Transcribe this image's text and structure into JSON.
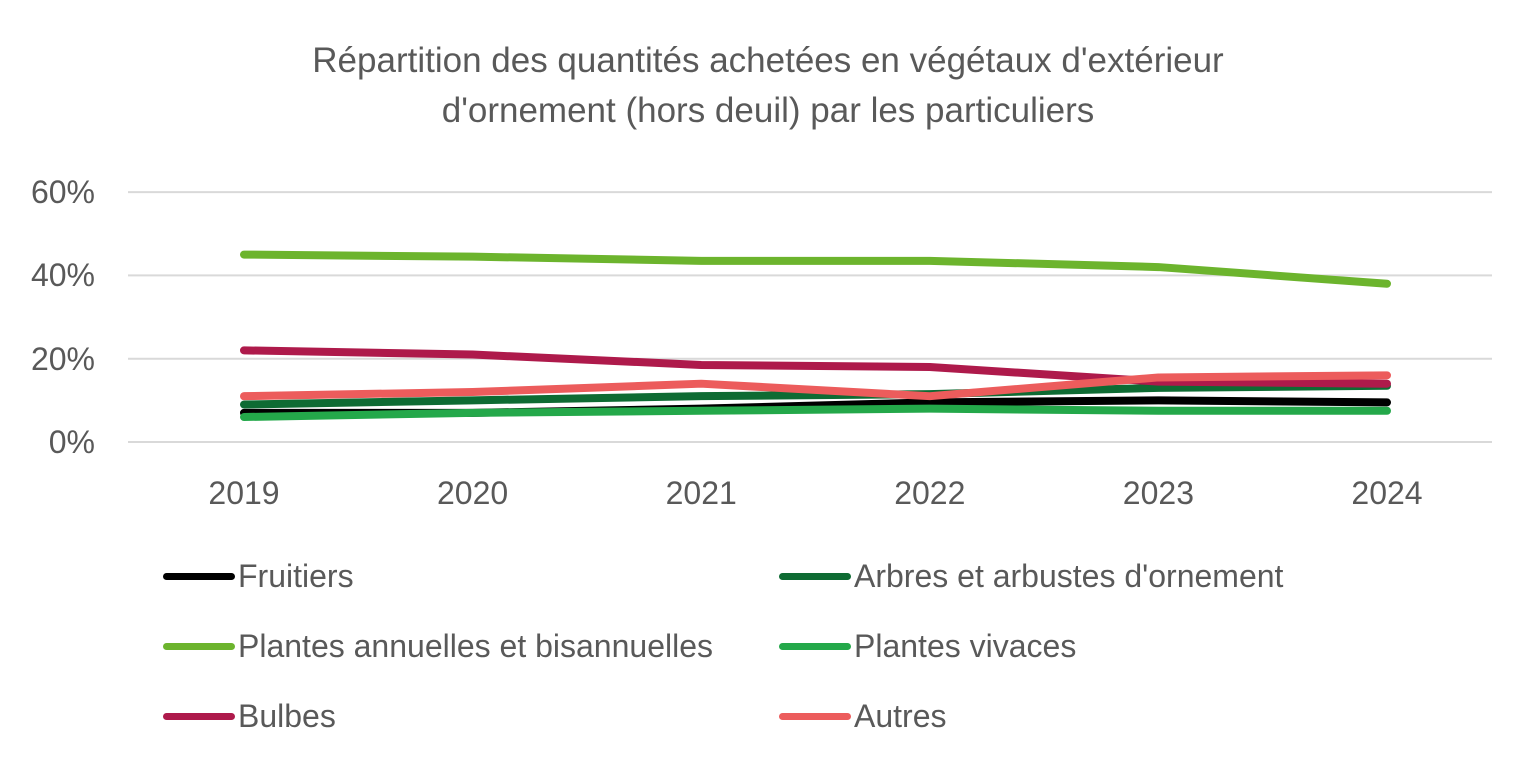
{
  "title": {
    "line1": "Répartition des quantités achetées en végétaux d'extérieur",
    "line2": "d'ornement (hors deuil) par les particuliers"
  },
  "chart_data": {
    "type": "line",
    "title": "Répartition des quantités achetées en végétaux d'extérieur d'ornement (hors deuil) par les particuliers",
    "x": [
      "2019",
      "2020",
      "2021",
      "2022",
      "2023",
      "2024"
    ],
    "xlabel": "",
    "ylabel": "",
    "ylim": [
      0,
      60
    ],
    "grid": true,
    "legend_position": "bottom",
    "y_ticks": [
      {
        "value": 0,
        "label": "0%"
      },
      {
        "value": 20,
        "label": "20%"
      },
      {
        "value": 40,
        "label": "40%"
      },
      {
        "value": 60,
        "label": "60%"
      }
    ],
    "series": [
      {
        "name": "Fruitiers",
        "color": "#000000",
        "values": [
          7,
          7,
          8,
          9.5,
          10,
          9.5
        ]
      },
      {
        "name": "Arbres et arbustes d'ornement",
        "color": "#0e6b33",
        "values": [
          9,
          10,
          11,
          11.5,
          13,
          13.5
        ]
      },
      {
        "name": "Plantes annuelles et bisannuelles",
        "color": "#6cb42d",
        "values": [
          45,
          44.5,
          43.5,
          43.5,
          42,
          38
        ]
      },
      {
        "name": "Plantes vivaces",
        "color": "#24a84a",
        "values": [
          6,
          7,
          7.5,
          8,
          7.5,
          7.5
        ]
      },
      {
        "name": "Bulbes",
        "color": "#ae1a4b",
        "values": [
          22,
          21,
          18.5,
          18,
          14.5,
          14
        ]
      },
      {
        "name": "Autres",
        "color": "#ec5c5c",
        "values": [
          11,
          12,
          14,
          11,
          15.5,
          16
        ]
      }
    ]
  },
  "colors": {
    "text": "#595959",
    "gridline": "#d9d9d9",
    "background": "#ffffff"
  }
}
